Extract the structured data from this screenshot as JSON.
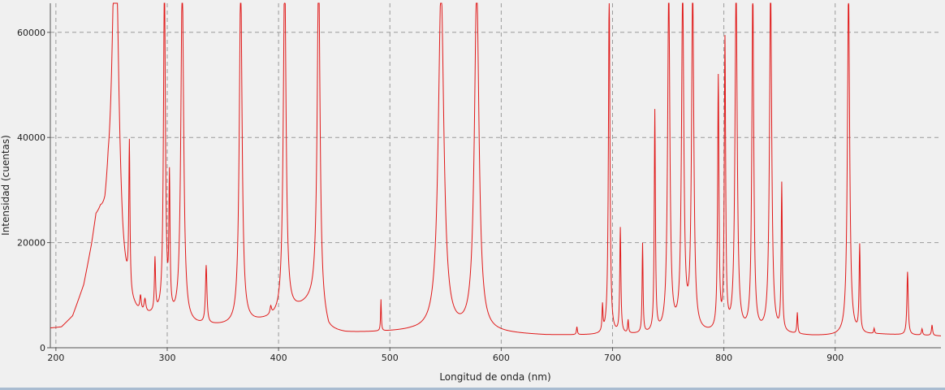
{
  "chart_data": {
    "type": "line",
    "xlabel": "Longitud de onda (nm)",
    "ylabel": "Intensidad (cuentas)",
    "xlim": [
      195,
      995
    ],
    "ylim": [
      0,
      65535
    ],
    "xticks": [
      200,
      300,
      400,
      500,
      600,
      700,
      800,
      900
    ],
    "xtick_labels": [
      "200",
      "300",
      "400",
      "500",
      "600",
      "700",
      "800",
      "900"
    ],
    "yticks": [
      0,
      20000,
      40000,
      60000
    ],
    "ytick_labels": [
      "0",
      "20000",
      "40000",
      "60000"
    ],
    "grid": true,
    "legend": "none",
    "series": [
      {
        "color": "#e01818",
        "baseline": [
          [
            195,
            3500
          ],
          [
            205,
            3600
          ],
          [
            215,
            5500
          ],
          [
            225,
            11000
          ],
          [
            232,
            18000
          ],
          [
            236,
            23000
          ],
          [
            240,
            23000
          ],
          [
            244,
            21000
          ],
          [
            247,
            23000
          ],
          [
            260,
            9000
          ],
          [
            268,
            6000
          ],
          [
            276,
            5000
          ],
          [
            290,
            5500
          ],
          [
            310,
            4200
          ],
          [
            320,
            4000
          ],
          [
            360,
            4000
          ],
          [
            400,
            5500
          ],
          [
            410,
            6500
          ],
          [
            420,
            7500
          ],
          [
            433,
            9000
          ],
          [
            445,
            3000
          ],
          [
            460,
            2700
          ],
          [
            520,
            3000
          ],
          [
            560,
            2700
          ],
          [
            600,
            2600
          ],
          [
            640,
            2300
          ],
          [
            700,
            2300
          ],
          [
            760,
            2500
          ],
          [
            800,
            2500
          ],
          [
            860,
            2400
          ],
          [
            880,
            2200
          ],
          [
            900,
            2200
          ],
          [
            940,
            2500
          ],
          [
            960,
            2400
          ],
          [
            985,
            2300
          ],
          [
            995,
            2200
          ]
        ],
        "peaks": [
          {
            "x": 253.5,
            "height": 65535,
            "width": 3.5
          },
          {
            "x": 266,
            "height": 28000,
            "width": 0.6
          },
          {
            "x": 276,
            "height": 3000,
            "width": 0.8
          },
          {
            "x": 280,
            "height": 2500,
            "width": 1.0
          },
          {
            "x": 289,
            "height": 10000,
            "width": 0.6
          },
          {
            "x": 297.5,
            "height": 65535,
            "width": 1.0
          },
          {
            "x": 302,
            "height": 25000,
            "width": 0.6
          },
          {
            "x": 313.5,
            "height": 65535,
            "width": 1.5
          },
          {
            "x": 335,
            "height": 11000,
            "width": 0.8
          },
          {
            "x": 366,
            "height": 65535,
            "width": 1.5
          },
          {
            "x": 393,
            "height": 1500,
            "width": 0.8
          },
          {
            "x": 405.5,
            "height": 65535,
            "width": 1.5
          },
          {
            "x": 436,
            "height": 65535,
            "width": 1.5
          },
          {
            "x": 492,
            "height": 6000,
            "width": 0.4
          },
          {
            "x": 546,
            "height": 65535,
            "width": 3.0
          },
          {
            "x": 578,
            "height": 65535,
            "width": 2.5
          },
          {
            "x": 668,
            "height": 1500,
            "width": 0.5
          },
          {
            "x": 691,
            "height": 5000,
            "width": 0.5
          },
          {
            "x": 697,
            "height": 65535,
            "width": 0.8
          },
          {
            "x": 707,
            "height": 20000,
            "width": 0.6
          },
          {
            "x": 714,
            "height": 2500,
            "width": 0.5
          },
          {
            "x": 727,
            "height": 17000,
            "width": 0.5
          },
          {
            "x": 738,
            "height": 42000,
            "width": 0.6
          },
          {
            "x": 750.5,
            "height": 65535,
            "width": 1.2
          },
          {
            "x": 763,
            "height": 65535,
            "width": 1.2
          },
          {
            "x": 772,
            "height": 65535,
            "width": 1.2
          },
          {
            "x": 795,
            "height": 48000,
            "width": 0.7
          },
          {
            "x": 801,
            "height": 55000,
            "width": 0.7
          },
          {
            "x": 811,
            "height": 65535,
            "width": 1.2
          },
          {
            "x": 826,
            "height": 65535,
            "width": 1.0
          },
          {
            "x": 842,
            "height": 65535,
            "width": 1.2
          },
          {
            "x": 852,
            "height": 28000,
            "width": 0.6
          },
          {
            "x": 866,
            "height": 4000,
            "width": 0.5
          },
          {
            "x": 912,
            "height": 65535,
            "width": 1.2
          },
          {
            "x": 922,
            "height": 16500,
            "width": 0.6
          },
          {
            "x": 935,
            "height": 1000,
            "width": 0.5
          },
          {
            "x": 965,
            "height": 12000,
            "width": 0.7
          },
          {
            "x": 978,
            "height": 1200,
            "width": 0.6
          },
          {
            "x": 987,
            "height": 2000,
            "width": 0.6
          }
        ]
      }
    ]
  }
}
